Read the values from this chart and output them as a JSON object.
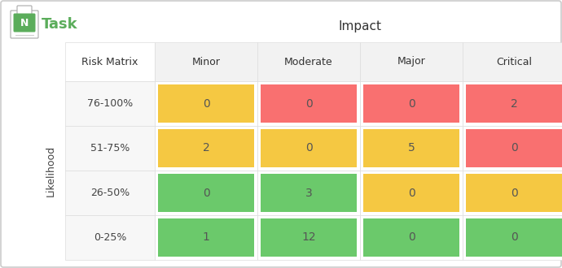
{
  "title": "Impact",
  "ylabel": "Likelihood",
  "col_labels": [
    "Minor",
    "Moderate",
    "Major",
    "Critical"
  ],
  "row_labels": [
    "76-100%",
    "51-75%",
    "26-50%",
    "0-25%"
  ],
  "values": [
    [
      0,
      0,
      0,
      2
    ],
    [
      2,
      0,
      5,
      0
    ],
    [
      0,
      3,
      0,
      0
    ],
    [
      1,
      12,
      0,
      0
    ]
  ],
  "colors": [
    [
      "#F5C842",
      "#F97070",
      "#F97070",
      "#F97070"
    ],
    [
      "#F5C842",
      "#F5C842",
      "#F5C842",
      "#F97070"
    ],
    [
      "#6BC96B",
      "#6BC96B",
      "#F5C842",
      "#F5C842"
    ],
    [
      "#6BC96B",
      "#6BC96B",
      "#6BC96B",
      "#6BC96B"
    ]
  ],
  "bg_color": "#FFFFFF",
  "header_bg": "#F2F2F2",
  "row_bg": "#F7F7F7",
  "border_color": "#DDDDDD",
  "logo_color": "#5BAD5B",
  "logo_text": "Task",
  "title_fontsize": 11,
  "label_fontsize": 9,
  "cell_fontsize": 10,
  "logo_fontsize": 13
}
